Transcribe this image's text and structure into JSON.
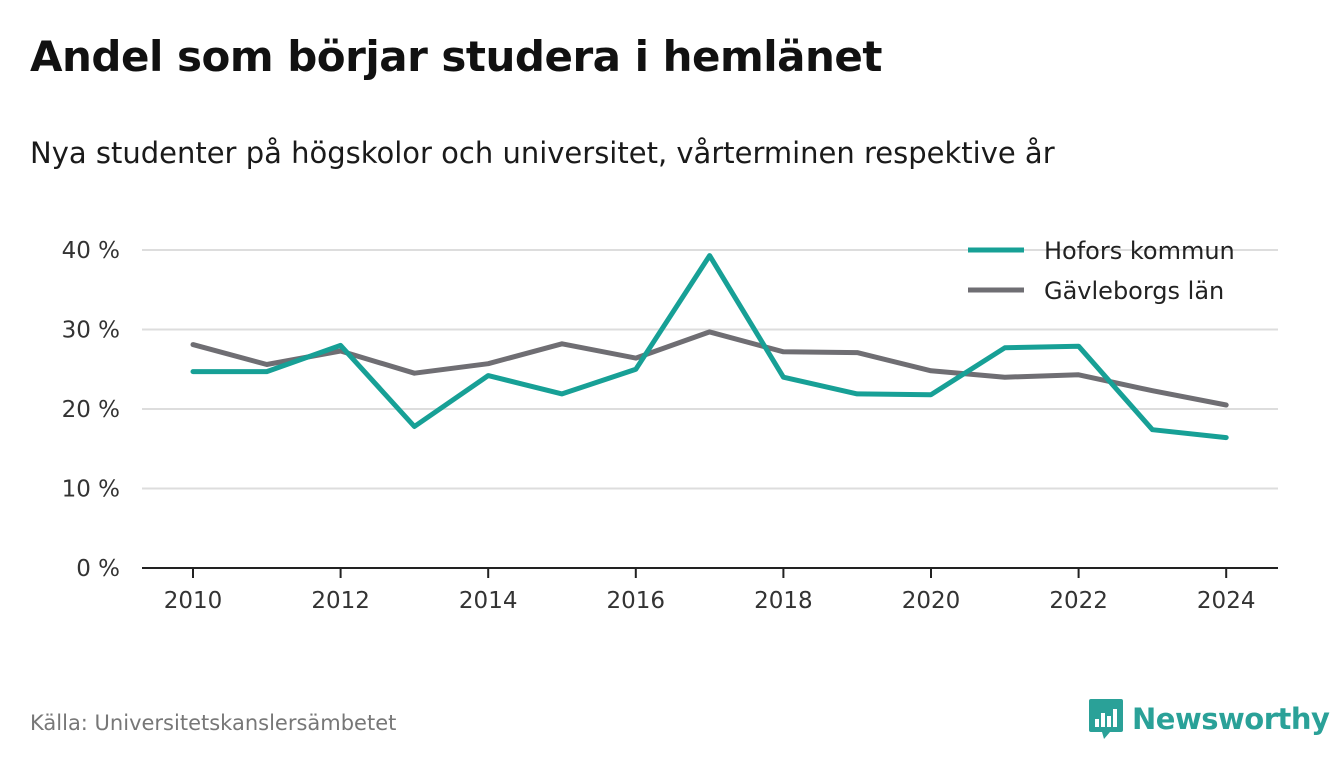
{
  "title": "Andel som börjar studera i hemlänet",
  "subtitle": "Nya studenter på högskolor och universitet, vårterminen respektive år",
  "source": "Källa: Universitetskanslersämbetet",
  "brand": {
    "name": "Newsworthy",
    "icon": "newsworthy-logo-icon",
    "color": "#2aa198"
  },
  "chart_data": {
    "type": "line",
    "x": [
      2010,
      2011,
      2012,
      2013,
      2014,
      2015,
      2016,
      2017,
      2018,
      2019,
      2020,
      2021,
      2022,
      2023,
      2024
    ],
    "x_ticks": [
      "2010",
      "2012",
      "2014",
      "2016",
      "2018",
      "2020",
      "2022",
      "2024"
    ],
    "y_ticks": [
      {
        "value": 0,
        "label": "0 %"
      },
      {
        "value": 10,
        "label": "10 %"
      },
      {
        "value": 20,
        "label": "20 %"
      },
      {
        "value": 30,
        "label": "30 %"
      },
      {
        "value": 40,
        "label": "40 %"
      }
    ],
    "ylim": [
      0,
      40
    ],
    "grid": true,
    "legend_position": "top-right",
    "series": [
      {
        "name": "Hofors kommun",
        "color": "#17a096",
        "values": [
          24.7,
          24.7,
          28.0,
          17.8,
          24.2,
          21.9,
          25.0,
          39.3,
          24.0,
          21.9,
          21.8,
          27.7,
          27.9,
          17.4,
          16.4
        ]
      },
      {
        "name": "Gävleborgs län",
        "color": "#6f6e73",
        "values": [
          28.1,
          25.6,
          27.3,
          24.5,
          25.7,
          28.2,
          26.4,
          29.7,
          27.2,
          27.1,
          24.8,
          24.0,
          24.3,
          22.3,
          20.5
        ]
      }
    ]
  }
}
